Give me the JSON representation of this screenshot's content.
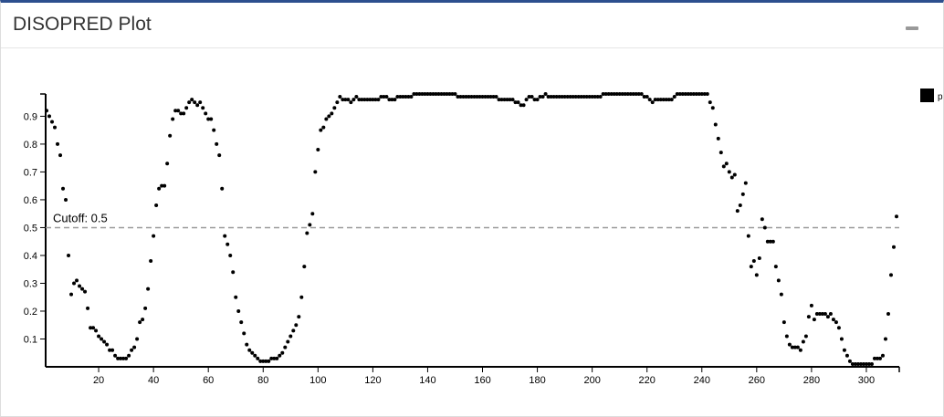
{
  "header": {
    "title": "DISOPRED Plot"
  },
  "chart_data": {
    "type": "scatter",
    "x": [
      1,
      2,
      3,
      4,
      5,
      6,
      7,
      8,
      9,
      10,
      11,
      12,
      13,
      14,
      15,
      16,
      17,
      18,
      19,
      20,
      21,
      22,
      23,
      24,
      25,
      26,
      27,
      28,
      29,
      30,
      31,
      32,
      33,
      34,
      35,
      36,
      37,
      38,
      39,
      40,
      41,
      42,
      43,
      44,
      45,
      46,
      47,
      48,
      49,
      50,
      51,
      52,
      53,
      54,
      55,
      56,
      57,
      58,
      59,
      60,
      61,
      62,
      63,
      64,
      65,
      66,
      67,
      68,
      69,
      70,
      71,
      72,
      73,
      74,
      75,
      76,
      77,
      78,
      79,
      80,
      81,
      82,
      83,
      84,
      85,
      86,
      87,
      88,
      89,
      90,
      91,
      92,
      93,
      94,
      95,
      96,
      97,
      98,
      99,
      100,
      101,
      102,
      103,
      104,
      105,
      106,
      107,
      108,
      109,
      110,
      111,
      112,
      113,
      114,
      115,
      116,
      117,
      118,
      119,
      120,
      121,
      122,
      123,
      124,
      125,
      126,
      127,
      128,
      129,
      130,
      131,
      132,
      133,
      134,
      135,
      136,
      137,
      138,
      139,
      140,
      141,
      142,
      143,
      144,
      145,
      146,
      147,
      148,
      149,
      150,
      151,
      152,
      153,
      154,
      155,
      156,
      157,
      158,
      159,
      160,
      161,
      162,
      163,
      164,
      165,
      166,
      167,
      168,
      169,
      170,
      171,
      172,
      173,
      174,
      175,
      176,
      177,
      178,
      179,
      180,
      181,
      182,
      183,
      184,
      185,
      186,
      187,
      188,
      189,
      190,
      191,
      192,
      193,
      194,
      195,
      196,
      197,
      198,
      199,
      200,
      201,
      202,
      203,
      204,
      205,
      206,
      207,
      208,
      209,
      210,
      211,
      212,
      213,
      214,
      215,
      216,
      217,
      218,
      219,
      220,
      221,
      222,
      223,
      224,
      225,
      226,
      227,
      228,
      229,
      230,
      231,
      232,
      233,
      234,
      235,
      236,
      237,
      238,
      239,
      240,
      241,
      242,
      243,
      244,
      245,
      246,
      247,
      248,
      249,
      250,
      251,
      252,
      253,
      254,
      255,
      256,
      257,
      258,
      259,
      260,
      261,
      262,
      263,
      264,
      265,
      266,
      267,
      268,
      269,
      270,
      271,
      272,
      273,
      274,
      275,
      276,
      277,
      278,
      279,
      280,
      281,
      282,
      283,
      284,
      285,
      286,
      287,
      288,
      289,
      290,
      291,
      292,
      293,
      294,
      295,
      296,
      297,
      298,
      299,
      300,
      301,
      302,
      303,
      304,
      305,
      306,
      307,
      308,
      309,
      310,
      311
    ],
    "series": [
      {
        "name": "p",
        "color": "#000000",
        "values": [
          0.92,
          0.9,
          0.88,
          0.86,
          0.8,
          0.76,
          0.64,
          0.6,
          0.4,
          0.26,
          0.3,
          0.31,
          0.29,
          0.28,
          0.27,
          0.21,
          0.14,
          0.14,
          0.13,
          0.11,
          0.1,
          0.09,
          0.08,
          0.06,
          0.06,
          0.04,
          0.03,
          0.03,
          0.03,
          0.03,
          0.04,
          0.06,
          0.07,
          0.1,
          0.16,
          0.17,
          0.21,
          0.28,
          0.38,
          0.47,
          0.58,
          0.64,
          0.65,
          0.65,
          0.73,
          0.83,
          0.89,
          0.92,
          0.92,
          0.91,
          0.91,
          0.93,
          0.95,
          0.96,
          0.95,
          0.94,
          0.95,
          0.93,
          0.91,
          0.89,
          0.89,
          0.85,
          0.8,
          0.76,
          0.64,
          0.47,
          0.44,
          0.4,
          0.34,
          0.25,
          0.2,
          0.16,
          0.12,
          0.08,
          0.06,
          0.05,
          0.04,
          0.03,
          0.02,
          0.02,
          0.02,
          0.02,
          0.03,
          0.03,
          0.03,
          0.04,
          0.05,
          0.07,
          0.09,
          0.11,
          0.13,
          0.15,
          0.18,
          0.25,
          0.36,
          0.48,
          0.51,
          0.55,
          0.7,
          0.78,
          0.85,
          0.86,
          0.89,
          0.9,
          0.91,
          0.93,
          0.95,
          0.97,
          0.96,
          0.96,
          0.96,
          0.95,
          0.96,
          0.97,
          0.96,
          0.96,
          0.96,
          0.96,
          0.96,
          0.96,
          0.96,
          0.96,
          0.97,
          0.97,
          0.97,
          0.96,
          0.96,
          0.96,
          0.97,
          0.97,
          0.97,
          0.97,
          0.97,
          0.97,
          0.98,
          0.98,
          0.98,
          0.98,
          0.98,
          0.98,
          0.98,
          0.98,
          0.98,
          0.98,
          0.98,
          0.98,
          0.98,
          0.98,
          0.98,
          0.98,
          0.97,
          0.97,
          0.97,
          0.97,
          0.97,
          0.97,
          0.97,
          0.97,
          0.97,
          0.97,
          0.97,
          0.97,
          0.97,
          0.97,
          0.97,
          0.96,
          0.96,
          0.96,
          0.96,
          0.96,
          0.96,
          0.95,
          0.95,
          0.94,
          0.94,
          0.96,
          0.97,
          0.97,
          0.96,
          0.96,
          0.97,
          0.97,
          0.98,
          0.97,
          0.97,
          0.97,
          0.97,
          0.97,
          0.97,
          0.97,
          0.97,
          0.97,
          0.97,
          0.97,
          0.97,
          0.97,
          0.97,
          0.97,
          0.97,
          0.97,
          0.97,
          0.97,
          0.97,
          0.98,
          0.98,
          0.98,
          0.98,
          0.98,
          0.98,
          0.98,
          0.98,
          0.98,
          0.98,
          0.98,
          0.98,
          0.98,
          0.98,
          0.98,
          0.97,
          0.97,
          0.96,
          0.95,
          0.96,
          0.96,
          0.96,
          0.96,
          0.96,
          0.96,
          0.96,
          0.97,
          0.98,
          0.98,
          0.98,
          0.98,
          0.98,
          0.98,
          0.98,
          0.98,
          0.98,
          0.98,
          0.98,
          0.98,
          0.95,
          0.93,
          0.87,
          0.82,
          0.77,
          0.72,
          0.73,
          0.7,
          0.68,
          0.69,
          0.56,
          0.58,
          0.62,
          0.66,
          0.47,
          0.36,
          0.38,
          0.33,
          0.39,
          0.53,
          0.5,
          0.45,
          0.45,
          0.45,
          0.36,
          0.31,
          0.26,
          0.16,
          0.11,
          0.08,
          0.07,
          0.07,
          0.07,
          0.06,
          0.09,
          0.11,
          0.18,
          0.22,
          0.17,
          0.19,
          0.19,
          0.19,
          0.19,
          0.18,
          0.19,
          0.17,
          0.16,
          0.14,
          0.1,
          0.06,
          0.04,
          0.02,
          0.01,
          0.01,
          0.01,
          0.01,
          0.01,
          0.01,
          0.01,
          0.01,
          0.03,
          0.03,
          0.03,
          0.04,
          0.1,
          0.19,
          0.33,
          0.43,
          0.54
        ]
      }
    ],
    "xlim": [
      0,
      312
    ],
    "ylim": [
      0,
      0.98
    ],
    "xticks": [
      20,
      40,
      60,
      80,
      100,
      120,
      140,
      160,
      180,
      200,
      220,
      240,
      260,
      280,
      300
    ],
    "yticks": [
      0.1,
      0.2,
      0.3,
      0.4,
      0.5,
      0.6,
      0.7,
      0.8,
      0.9
    ],
    "cutoff": {
      "value": 0.5,
      "label": "Cutoff: 0.5"
    },
    "legend": "top-right"
  }
}
